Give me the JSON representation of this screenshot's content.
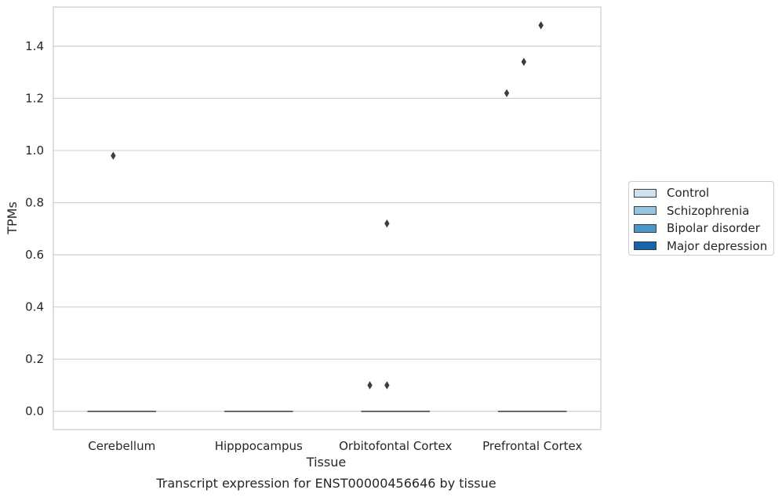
{
  "chart_data": {
    "type": "box",
    "title": "Transcript expression for ENST00000456646 by tissue",
    "xlabel": "Tissue",
    "ylabel": "TPMs",
    "categories": [
      "Cerebellum",
      "Hipppocampus",
      "Orbitofontal Cortex",
      "Prefrontal Cortex"
    ],
    "ylim": [
      -0.07,
      1.55
    ],
    "yticks": [
      0.0,
      0.2,
      0.4,
      0.6,
      0.8,
      1.0,
      1.2,
      1.4
    ],
    "ytick_labels": [
      "0.0",
      "0.2",
      "0.4",
      "0.6",
      "0.8",
      "1.0",
      "1.2",
      "1.4"
    ],
    "grid": true,
    "legend_position": "right",
    "series": [
      {
        "name": "Control",
        "color": "#d0e1f2",
        "boxes": [
          {
            "category": "Cerebellum",
            "q1": 0,
            "median": 0,
            "q3": 0,
            "whisker_low": 0,
            "whisker_high": 0
          },
          {
            "category": "Hipppocampus",
            "q1": 0,
            "median": 0,
            "q3": 0,
            "whisker_low": 0,
            "whisker_high": 0
          },
          {
            "category": "Orbitofontal Cortex",
            "q1": 0,
            "median": 0,
            "q3": 0,
            "whisker_low": 0,
            "whisker_high": 0
          },
          {
            "category": "Prefrontal Cortex",
            "q1": 0,
            "median": 0,
            "q3": 0,
            "whisker_low": 0,
            "whisker_high": 0
          }
        ],
        "outliers": [
          {
            "category": "Orbitofontal Cortex",
            "value": 0.1
          },
          {
            "category": "Prefrontal Cortex",
            "value": 1.22
          }
        ]
      },
      {
        "name": "Schizophrenia",
        "color": "#94c4df",
        "boxes": [
          {
            "category": "Cerebellum",
            "q1": 0,
            "median": 0,
            "q3": 0,
            "whisker_low": 0,
            "whisker_high": 0
          },
          {
            "category": "Hipppocampus",
            "q1": 0,
            "median": 0,
            "q3": 0,
            "whisker_low": 0,
            "whisker_high": 0
          },
          {
            "category": "Orbitofontal Cortex",
            "q1": 0,
            "median": 0,
            "q3": 0,
            "whisker_low": 0,
            "whisker_high": 0
          },
          {
            "category": "Prefrontal Cortex",
            "q1": 0,
            "median": 0,
            "q3": 0,
            "whisker_low": 0,
            "whisker_high": 0
          }
        ],
        "outliers": [
          {
            "category": "Cerebellum",
            "value": 0.98
          },
          {
            "category": "Orbitofontal Cortex",
            "value": 0.72
          },
          {
            "category": "Orbitofontal Cortex",
            "value": 0.1
          },
          {
            "category": "Prefrontal Cortex",
            "value": 1.34
          }
        ]
      },
      {
        "name": "Bipolar disorder",
        "color": "#4a98c9",
        "boxes": [
          {
            "category": "Cerebellum",
            "q1": 0,
            "median": 0,
            "q3": 0,
            "whisker_low": 0,
            "whisker_high": 0
          },
          {
            "category": "Hipppocampus",
            "q1": 0,
            "median": 0,
            "q3": 0,
            "whisker_low": 0,
            "whisker_high": 0
          },
          {
            "category": "Orbitofontal Cortex",
            "q1": 0,
            "median": 0,
            "q3": 0,
            "whisker_low": 0,
            "whisker_high": 0
          },
          {
            "category": "Prefrontal Cortex",
            "q1": 0,
            "median": 0,
            "q3": 0,
            "whisker_low": 0,
            "whisker_high": 0
          }
        ],
        "outliers": [
          {
            "category": "Prefrontal Cortex",
            "value": 1.48
          }
        ]
      },
      {
        "name": "Major depression",
        "color": "#1764ab",
        "boxes": [
          {
            "category": "Cerebellum",
            "q1": 0,
            "median": 0,
            "q3": 0,
            "whisker_low": 0,
            "whisker_high": 0
          },
          {
            "category": "Hipppocampus",
            "q1": 0,
            "median": 0,
            "q3": 0,
            "whisker_low": 0,
            "whisker_high": 0
          },
          {
            "category": "Orbitofontal Cortex",
            "q1": 0,
            "median": 0,
            "q3": 0,
            "whisker_low": 0,
            "whisker_high": 0
          },
          {
            "category": "Prefrontal Cortex",
            "q1": 0,
            "median": 0,
            "q3": 0,
            "whisker_low": 0,
            "whisker_high": 0
          }
        ],
        "outliers": []
      }
    ]
  }
}
